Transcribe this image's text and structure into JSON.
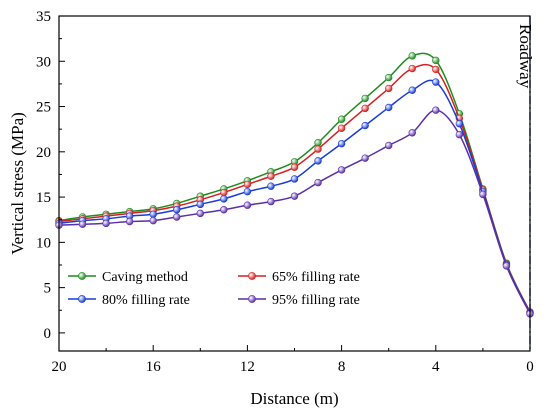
{
  "chart_data": {
    "type": "line",
    "xlabel": "Distance (m)",
    "ylabel": "Vertical stress (MPa)",
    "xlim": [
      20,
      0
    ],
    "ylim": [
      -2,
      35
    ],
    "x_ticks": [
      20,
      16,
      12,
      8,
      4,
      0
    ],
    "y_ticks": [
      0,
      5,
      10,
      15,
      20,
      25,
      30,
      35
    ],
    "grid": false,
    "legend_position": "bottom-left",
    "annotation": {
      "text": "Roadway",
      "x": 0,
      "line_color": "#1a3cd6"
    },
    "x": [
      20,
      19,
      18,
      17,
      16,
      15,
      14,
      13,
      12,
      11,
      10,
      9,
      8,
      7,
      6,
      5,
      4,
      3,
      2,
      1,
      0
    ],
    "series": [
      {
        "name": "Caving method",
        "color": "#1e8c1e",
        "values": [
          12.4,
          12.8,
          13.1,
          13.4,
          13.7,
          14.3,
          15.1,
          15.9,
          16.8,
          17.8,
          18.9,
          21.0,
          23.6,
          25.9,
          28.2,
          30.6,
          30.1,
          24.2,
          15.9,
          7.7,
          2.3
        ]
      },
      {
        "name": "65% filling rate",
        "color": "#d42020",
        "values": [
          12.3,
          12.6,
          12.9,
          13.2,
          13.5,
          14.0,
          14.7,
          15.5,
          16.4,
          17.3,
          18.3,
          20.3,
          22.6,
          24.8,
          27.0,
          29.2,
          29.1,
          23.7,
          15.8,
          7.6,
          2.3
        ]
      },
      {
        "name": "80% filling rate",
        "color": "#1a3cd6",
        "values": [
          12.1,
          12.4,
          12.6,
          12.9,
          13.1,
          13.6,
          14.2,
          14.8,
          15.6,
          16.2,
          17.0,
          19.0,
          20.9,
          22.9,
          24.9,
          26.8,
          27.7,
          23.1,
          15.6,
          7.5,
          2.2
        ]
      },
      {
        "name": "95% filling rate",
        "color": "#5a2fa8",
        "values": [
          11.9,
          12.0,
          12.1,
          12.3,
          12.4,
          12.8,
          13.2,
          13.6,
          14.1,
          14.5,
          15.1,
          16.6,
          18.0,
          19.3,
          20.7,
          22.1,
          24.6,
          21.9,
          15.3,
          7.4,
          2.1
        ]
      }
    ]
  }
}
